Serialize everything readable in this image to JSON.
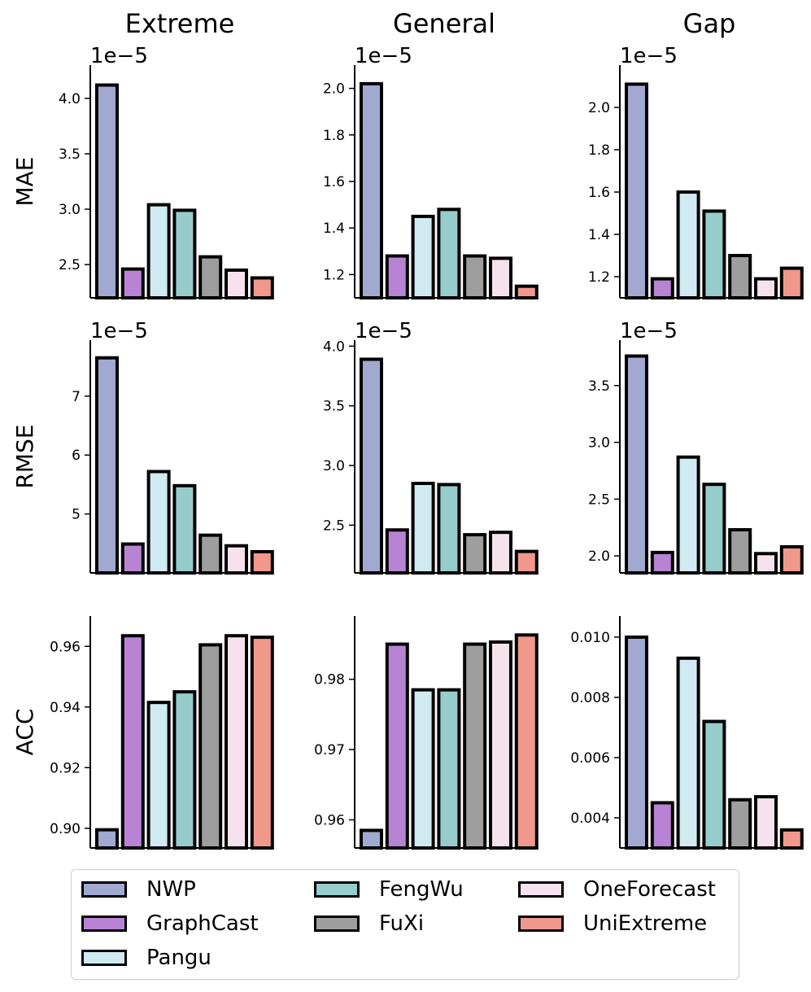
{
  "chart_data": {
    "type": "bar",
    "columns": [
      "Extreme",
      "General",
      "Gap"
    ],
    "rows": [
      "MAE",
      "RMSE",
      "ACC"
    ],
    "categories": [
      "NWP",
      "GraphCast",
      "Pangu",
      "FengWu",
      "FuXi",
      "OneForecast",
      "UniExtreme"
    ],
    "colors": [
      "#A1A9D0",
      "#B883D4",
      "#CFEAF1",
      "#96CCCB",
      "#9E9E9E",
      "#F6E2EC",
      "#F0988C"
    ],
    "legend_position": "bottom",
    "panels": [
      {
        "name": "mae-extreme",
        "row": 0,
        "col": 0,
        "ylim": [
          2.2,
          4.3
        ],
        "ticks": [
          2.5,
          3.0,
          3.5,
          4.0
        ],
        "tick_labels": [
          "2.5",
          "3.0",
          "3.5",
          "4.0"
        ],
        "scale_label": "1e−5",
        "values": [
          4.12,
          2.46,
          3.04,
          2.99,
          2.57,
          2.45,
          2.38
        ]
      },
      {
        "name": "mae-general",
        "row": 0,
        "col": 1,
        "ylim": [
          1.1,
          2.1
        ],
        "ticks": [
          1.2,
          1.4,
          1.6,
          1.8,
          2.0
        ],
        "tick_labels": [
          "1.2",
          "1.4",
          "1.6",
          "1.8",
          "2.0"
        ],
        "scale_label": "1e−5",
        "values": [
          2.02,
          1.28,
          1.45,
          1.48,
          1.28,
          1.27,
          1.15
        ]
      },
      {
        "name": "mae-gap",
        "row": 0,
        "col": 2,
        "ylim": [
          1.1,
          2.2
        ],
        "ticks": [
          1.2,
          1.4,
          1.6,
          1.8,
          2.0
        ],
        "tick_labels": [
          "1.2",
          "1.4",
          "1.6",
          "1.8",
          "2.0"
        ],
        "scale_label": "1e−5",
        "values": [
          2.11,
          1.19,
          1.6,
          1.51,
          1.3,
          1.19,
          1.24
        ]
      },
      {
        "name": "rmse-extreme",
        "row": 1,
        "col": 0,
        "ylim": [
          4.0,
          7.95
        ],
        "ticks": [
          5,
          6,
          7
        ],
        "tick_labels": [
          "5",
          "6",
          "7"
        ],
        "scale_label": "1e−5",
        "values": [
          7.65,
          4.49,
          5.72,
          5.48,
          4.64,
          4.46,
          4.36
        ]
      },
      {
        "name": "rmse-general",
        "row": 1,
        "col": 1,
        "ylim": [
          2.1,
          4.05
        ],
        "ticks": [
          2.5,
          3.0,
          3.5,
          4.0
        ],
        "tick_labels": [
          "2.5",
          "3.0",
          "3.5",
          "4.0"
        ],
        "scale_label": "1e−5",
        "values": [
          3.89,
          2.46,
          2.85,
          2.84,
          2.42,
          2.44,
          2.28
        ]
      },
      {
        "name": "rmse-gap",
        "row": 1,
        "col": 2,
        "ylim": [
          1.85,
          3.9
        ],
        "ticks": [
          2.0,
          2.5,
          3.0,
          3.5
        ],
        "tick_labels": [
          "2.0",
          "2.5",
          "3.0",
          "3.5"
        ],
        "scale_label": "1e−5",
        "values": [
          3.76,
          2.03,
          2.87,
          2.63,
          2.23,
          2.02,
          2.08
        ]
      },
      {
        "name": "acc-extreme",
        "row": 2,
        "col": 0,
        "ylim": [
          0.8935,
          0.97
        ],
        "ticks": [
          0.9,
          0.92,
          0.94,
          0.96
        ],
        "tick_labels": [
          "0.90",
          "0.92",
          "0.94",
          "0.96"
        ],
        "scale_label": "",
        "values": [
          0.8995,
          0.9635,
          0.9415,
          0.945,
          0.9605,
          0.9635,
          0.963
        ]
      },
      {
        "name": "acc-general",
        "row": 2,
        "col": 1,
        "ylim": [
          0.956,
          0.989
        ],
        "ticks": [
          0.96,
          0.97,
          0.98
        ],
        "tick_labels": [
          "0.96",
          "0.97",
          "0.98"
        ],
        "scale_label": "",
        "values": [
          0.9585,
          0.985,
          0.9785,
          0.9785,
          0.985,
          0.9853,
          0.9863
        ]
      },
      {
        "name": "acc-gap",
        "row": 2,
        "col": 2,
        "ylim": [
          0.003,
          0.0107
        ],
        "ticks": [
          0.004,
          0.006,
          0.008,
          0.01
        ],
        "tick_labels": [
          "0.004",
          "0.006",
          "0.008",
          "0.010"
        ],
        "scale_label": "",
        "values": [
          0.01,
          0.0045,
          0.0093,
          0.0072,
          0.0046,
          0.0047,
          0.0036
        ]
      }
    ]
  }
}
